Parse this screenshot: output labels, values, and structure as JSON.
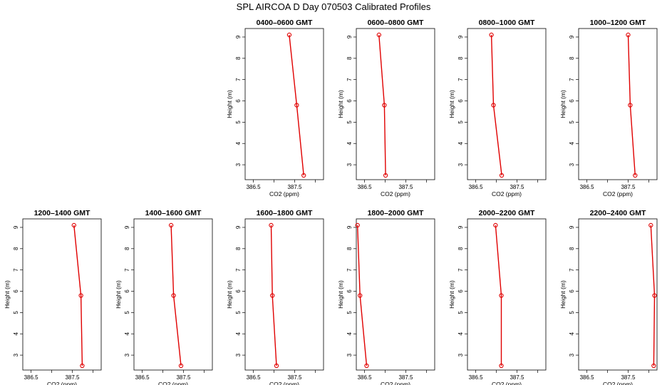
{
  "title": "SPL AIRCOA D  Day 070503  Calibrated Profiles",
  "chart_data": {
    "type": "line",
    "layout": {
      "rows": 2,
      "cols": 6,
      "first_row_empty_slots": 2
    },
    "xlabel": "CO2 (ppm)",
    "ylabel": "Height (m)",
    "xlim": [
      386.3,
      388.2
    ],
    "ylim": [
      2.3,
      9.4
    ],
    "x_ticks": [
      386.5,
      387.0,
      387.5,
      388.0
    ],
    "x_tick_labels": [
      "386.5",
      "",
      "387.5",
      ""
    ],
    "y_ticks": [
      3,
      4,
      5,
      6,
      7,
      8,
      9
    ],
    "series_color": "#e00000",
    "heights": [
      9.1,
      5.8,
      2.5
    ],
    "panels": [
      {
        "title": "0400–0600 GMT",
        "x": [
          387.37,
          387.55,
          387.72
        ],
        "y": [
          9.1,
          5.8,
          2.5
        ]
      },
      {
        "title": "0600–0800 GMT",
        "x": [
          386.85,
          386.98,
          387.01
        ],
        "y": [
          9.1,
          5.8,
          2.5
        ]
      },
      {
        "title": "0800–1000 GMT",
        "x": [
          386.88,
          386.93,
          387.13
        ],
        "y": [
          9.1,
          5.8,
          2.5
        ]
      },
      {
        "title": "1000–1200 GMT",
        "x": [
          387.5,
          387.55,
          387.67
        ],
        "y": [
          9.1,
          5.8,
          2.5
        ]
      },
      {
        "title": "1200–1400 GMT",
        "x": [
          387.54,
          387.71,
          387.74
        ],
        "y": [
          9.1,
          5.8,
          2.5
        ]
      },
      {
        "title": "1400–1600 GMT",
        "x": [
          387.2,
          387.26,
          387.44
        ],
        "y": [
          9.1,
          5.8,
          2.5
        ]
      },
      {
        "title": "1600–1800 GMT",
        "x": [
          386.93,
          386.96,
          387.06
        ],
        "y": [
          9.1,
          5.8,
          2.5
        ]
      },
      {
        "title": "1800–2000 GMT",
        "x": [
          386.33,
          386.39,
          386.55
        ],
        "y": [
          9.1,
          5.8,
          2.5
        ]
      },
      {
        "title": "2000–2200 GMT",
        "x": [
          386.98,
          387.12,
          387.12
        ],
        "y": [
          9.1,
          5.8,
          2.5
        ]
      },
      {
        "title": "2200–2400 GMT",
        "x": [
          388.05,
          388.14,
          388.12
        ],
        "y": [
          9.1,
          5.8,
          2.5
        ]
      }
    ]
  }
}
